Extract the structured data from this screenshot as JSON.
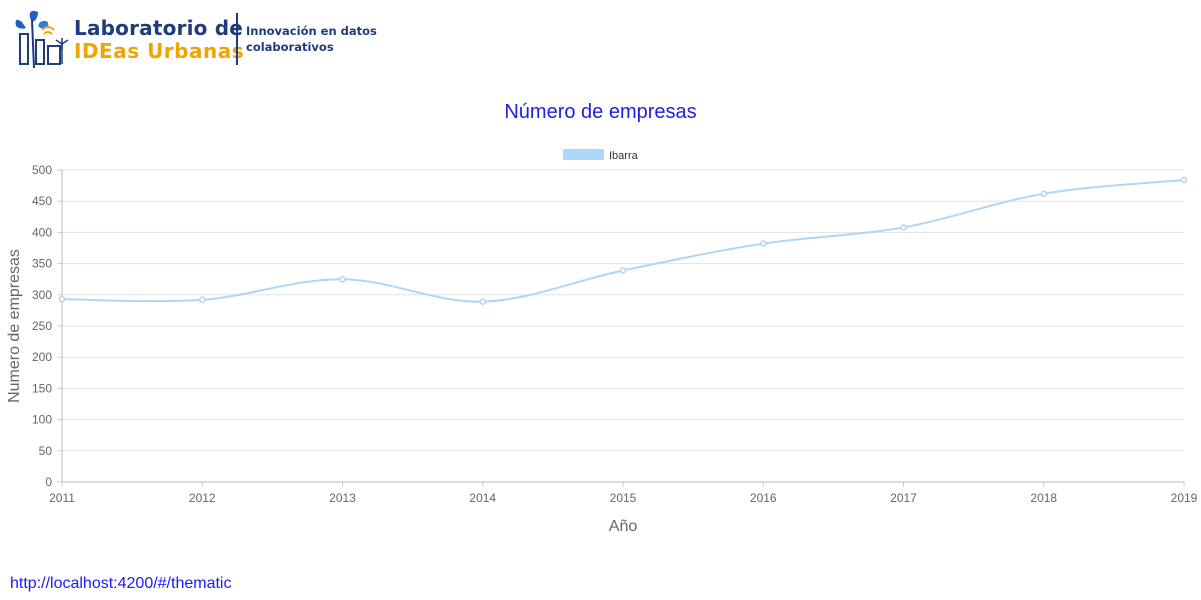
{
  "header": {
    "brand_line1": "Laboratorio de",
    "brand_line2": "IDEas Urbanas",
    "tagline": "Innovación en datos colaborativos",
    "colors": {
      "primary": "#1f3b7c",
      "accent": "#f0a400"
    }
  },
  "chart_data": {
    "type": "line",
    "title": "Número de empresas",
    "xlabel": "Año",
    "ylabel": "Numero de empresas",
    "x": [
      "2011",
      "2012",
      "2013",
      "2014",
      "2015",
      "2016",
      "2017",
      "2018",
      "2019"
    ],
    "series": [
      {
        "name": "Ibarra",
        "values": [
          293,
          292,
          325,
          289,
          339,
          382,
          408,
          462,
          484
        ],
        "color": "#aed6f7"
      }
    ],
    "ylim": [
      0,
      500
    ],
    "yticks": [
      0,
      50,
      100,
      150,
      200,
      250,
      300,
      350,
      400,
      450,
      500
    ],
    "grid": true,
    "legend": "top-center",
    "title_color": "#2020e0"
  },
  "footer": {
    "url": "http://localhost:4200/#/thematic"
  }
}
